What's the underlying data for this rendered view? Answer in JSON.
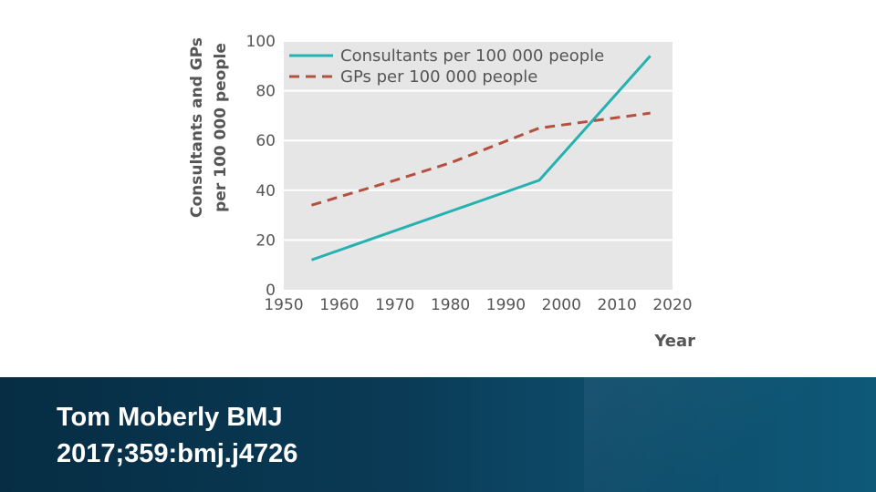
{
  "chart_data": {
    "type": "line",
    "title": "",
    "xlabel": "Year",
    "ylabel_lines": [
      "Consultants and GPs",
      "per 100 000 people"
    ],
    "xlim": [
      1950,
      2020
    ],
    "ylim": [
      0,
      100
    ],
    "x_ticks": [
      1950,
      1960,
      1970,
      1980,
      1990,
      2000,
      2010,
      2020
    ],
    "y_ticks": [
      0,
      20,
      40,
      60,
      80,
      100
    ],
    "grid": "horizontal",
    "legend_position": "top-left",
    "plot_background": "#e6e6e6",
    "series": [
      {
        "name": "Consultants per 100 000 people",
        "color": "#26b1b1",
        "style": "solid",
        "x": [
          1955,
          1996,
          2016
        ],
        "y": [
          12,
          44,
          94
        ]
      },
      {
        "name": "GPs per 100 000 people",
        "color": "#b5503f",
        "style": "dashed",
        "x": [
          1955,
          1970,
          1980,
          1996,
          2016
        ],
        "y": [
          34,
          44,
          51,
          65,
          71
        ]
      }
    ]
  },
  "footer": {
    "citation_line1": "Tom Moberly BMJ",
    "citation_line2": "2017;359:bmj.j4726"
  }
}
